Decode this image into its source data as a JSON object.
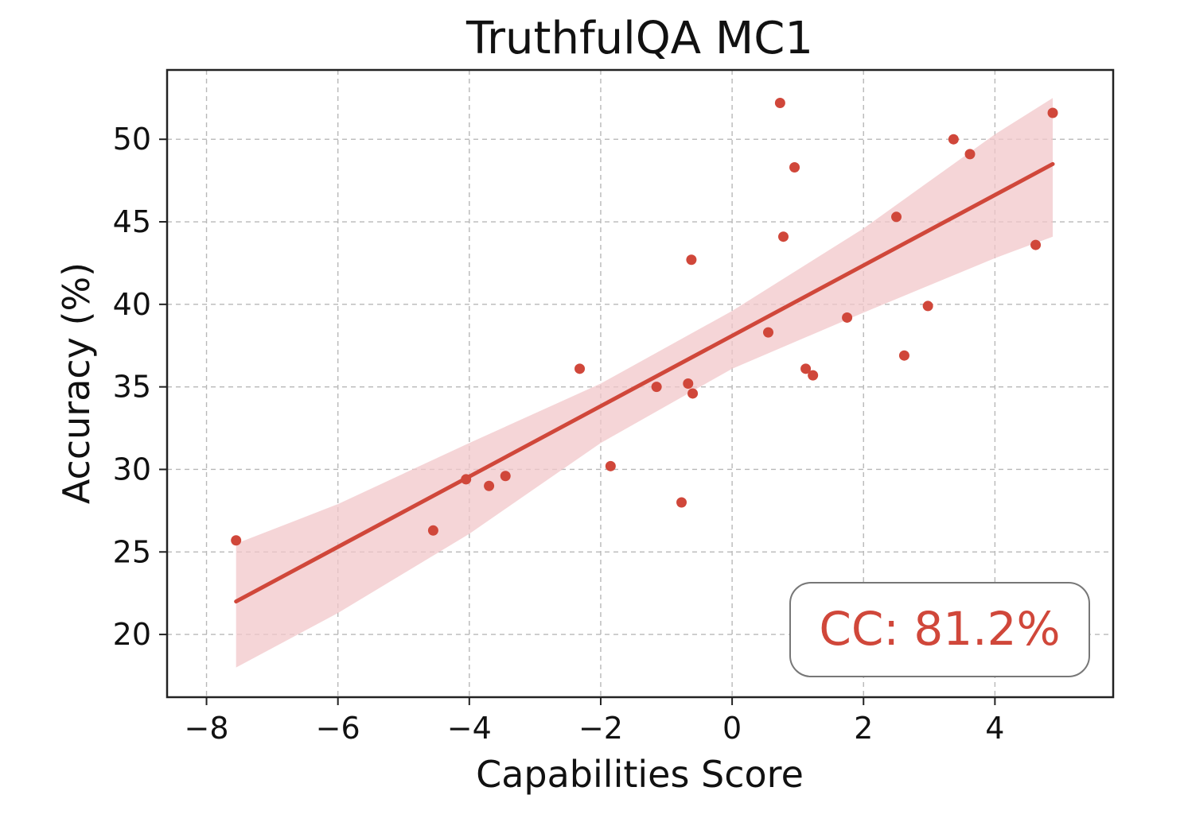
{
  "chart_data": {
    "type": "scatter",
    "title": "TruthfulQA MC1",
    "xlabel": "Capabilities Score",
    "ylabel": "Accuracy (%)",
    "xlim": [
      -8.6,
      5.8
    ],
    "ylim": [
      16.2,
      54.2
    ],
    "xticks": [
      -8,
      -6,
      -4,
      -2,
      0,
      2,
      4
    ],
    "xtick_labels": [
      "−8",
      "−6",
      "−4",
      "−2",
      "0",
      "2",
      "4"
    ],
    "yticks": [
      20,
      25,
      30,
      35,
      40,
      45,
      50
    ],
    "ytick_labels": [
      "20",
      "25",
      "30",
      "35",
      "40",
      "45",
      "50"
    ],
    "grid": true,
    "color": "#d0473a",
    "band_color": "#f2c7c9",
    "points": [
      {
        "x": -7.55,
        "y": 25.7
      },
      {
        "x": -4.55,
        "y": 26.3
      },
      {
        "x": -4.05,
        "y": 29.4
      },
      {
        "x": -3.7,
        "y": 29.0
      },
      {
        "x": -3.45,
        "y": 29.6
      },
      {
        "x": -2.32,
        "y": 36.1
      },
      {
        "x": -1.85,
        "y": 30.2
      },
      {
        "x": -1.15,
        "y": 35.0
      },
      {
        "x": -0.77,
        "y": 28.0
      },
      {
        "x": -0.67,
        "y": 35.2
      },
      {
        "x": -0.62,
        "y": 42.7
      },
      {
        "x": -0.6,
        "y": 34.6
      },
      {
        "x": 0.55,
        "y": 38.3
      },
      {
        "x": 0.73,
        "y": 52.2
      },
      {
        "x": 0.78,
        "y": 44.1
      },
      {
        "x": 0.95,
        "y": 48.3
      },
      {
        "x": 1.12,
        "y": 36.1
      },
      {
        "x": 1.23,
        "y": 35.7
      },
      {
        "x": 1.75,
        "y": 39.2
      },
      {
        "x": 2.5,
        "y": 45.3
      },
      {
        "x": 2.62,
        "y": 36.9
      },
      {
        "x": 2.98,
        "y": 39.9
      },
      {
        "x": 3.37,
        "y": 50.0
      },
      {
        "x": 3.62,
        "y": 49.1
      },
      {
        "x": 4.62,
        "y": 43.6
      },
      {
        "x": 4.88,
        "y": 51.6
      }
    ],
    "fit_line": {
      "x": [
        -7.55,
        4.88
      ],
      "y": [
        22.0,
        48.5
      ]
    },
    "confidence_band": {
      "x": [
        -7.55,
        -6,
        -4,
        -2,
        0,
        2,
        4,
        4.88
      ],
      "upper": [
        25.5,
        27.9,
        31.6,
        35.2,
        39.6,
        44.6,
        50.3,
        52.5
      ],
      "lower": [
        18.0,
        21.3,
        26.1,
        31.6,
        36.1,
        39.5,
        42.8,
        44.1
      ]
    },
    "annotation": {
      "text": "CC: 81.2%",
      "position": "bottom-right"
    }
  }
}
